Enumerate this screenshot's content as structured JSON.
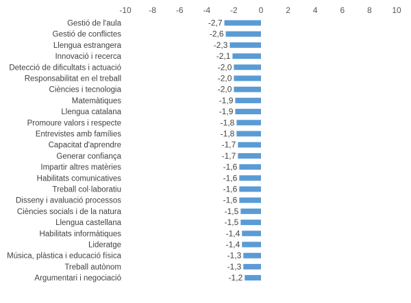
{
  "chart_data": {
    "type": "bar",
    "orientation": "horizontal",
    "title": "",
    "xlabel": "",
    "ylabel": "",
    "xlim": [
      -10,
      10
    ],
    "x_ticks": [
      "-10",
      "-8",
      "-6",
      "-4",
      "-2",
      "0",
      "2",
      "4",
      "6",
      "8",
      "10"
    ],
    "x_tick_values": [
      -10,
      -8,
      -6,
      -4,
      -2,
      0,
      2,
      4,
      6,
      8,
      10
    ],
    "categories": [
      "Gestió de l'aula",
      "Gestió de conflictes",
      "Llengua estrangera",
      "Innovació i recerca",
      "Detecció de dificultats i actuació",
      "Responsabilitat en el treball",
      "Ciències i tecnologia",
      "Matemàtiques",
      "Llengua catalana",
      "Promoure valors i respecte",
      "Entrevistes amb famílies",
      "Capacitat d'aprendre",
      "Generar confiança",
      "Impartir altres matèries",
      "Habilitats comunicatives",
      "Treball col·laboratiu",
      "Disseny i avaluació processos",
      "Ciències socials i de la natura",
      "Llengua castellana",
      "Habilitats informàtiques",
      "Lideratge",
      "Música, plàstica i educació física",
      "Treball autònom",
      "Argumentari i negociació"
    ],
    "values": [
      -2.7,
      -2.6,
      -2.3,
      -2.1,
      -2.0,
      -2.0,
      -2.0,
      -1.9,
      -1.9,
      -1.8,
      -1.8,
      -1.7,
      -1.7,
      -1.6,
      -1.6,
      -1.6,
      -1.6,
      -1.5,
      -1.5,
      -1.4,
      -1.4,
      -1.3,
      -1.3,
      -1.2
    ],
    "data_labels": [
      "-2,7",
      "-2,6",
      "-2,3",
      "-2,1",
      "-2,0",
      "-2,0",
      "-2,0",
      "-1,9",
      "-1,9",
      "-1,8",
      "-1,8",
      "-1,7",
      "-1,7",
      "-1,6",
      "-1,6",
      "-1,6",
      "-1,6",
      "-1,5",
      "-1,5",
      "-1,4",
      "-1,4",
      "-1,3",
      "-1,3",
      "-1,2"
    ],
    "bar_color": "#5b9bd5",
    "grid": false,
    "legend": "none",
    "axis_position": "top"
  }
}
